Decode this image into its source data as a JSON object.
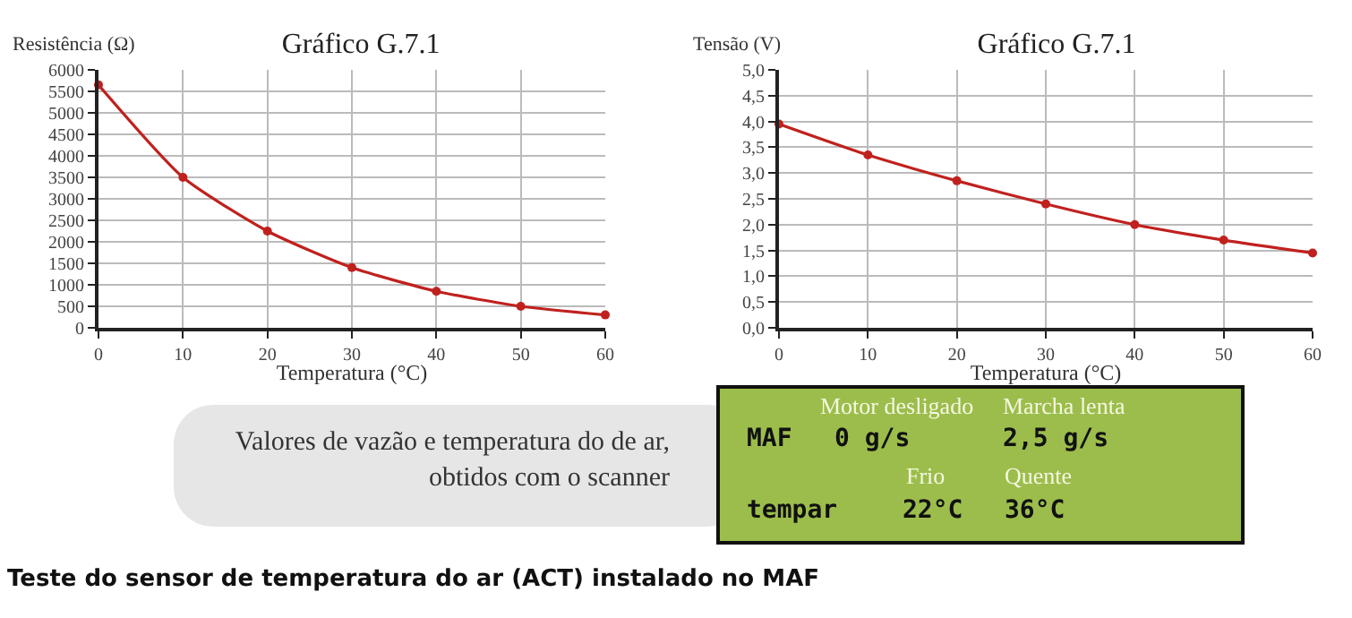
{
  "chart_data": [
    {
      "type": "line",
      "title": "Gráfico G.7.1",
      "xlabel": "Temperatura (°C)",
      "ylabel": "Resistência (Ω)",
      "x": [
        0,
        10,
        20,
        30,
        40,
        50,
        60
      ],
      "series": [
        {
          "color": "#c0211e",
          "values": [
            5650,
            3500,
            2250,
            1400,
            850,
            500,
            300
          ]
        }
      ],
      "xlim": [
        0,
        60
      ],
      "xticks": [
        0,
        10,
        20,
        30,
        40,
        50,
        60
      ],
      "ylim": [
        0,
        6000
      ],
      "yticks": [
        0,
        500,
        1000,
        1500,
        2000,
        2500,
        3000,
        3500,
        4000,
        4500,
        5000,
        5500,
        6000
      ],
      "grid": true,
      "marker": "circle",
      "line_style": "solid"
    },
    {
      "type": "line",
      "title": "Gráfico G.7.1",
      "xlabel": "Temperatura (°C)",
      "ylabel": "Tensão (V)",
      "x": [
        0,
        10,
        20,
        30,
        40,
        50,
        60
      ],
      "series": [
        {
          "color": "#c0211e",
          "values": [
            3.95,
            3.35,
            2.85,
            2.4,
            2.0,
            1.7,
            1.45
          ]
        }
      ],
      "xlim": [
        0,
        60
      ],
      "xticks": [
        0,
        10,
        20,
        30,
        40,
        50,
        60
      ],
      "ylim": [
        0,
        5
      ],
      "yticks": [
        {
          "value": 0,
          "label": "0,0"
        },
        {
          "value": 0.5,
          "label": "0,5"
        },
        {
          "value": 1,
          "label": "1,0"
        },
        {
          "value": 1.5,
          "label": "1,5"
        },
        {
          "value": 2,
          "label": "2,0"
        },
        {
          "value": 2.5,
          "label": "2,5"
        },
        {
          "value": 3,
          "label": "3,0"
        },
        {
          "value": 3.5,
          "label": "3,5"
        },
        {
          "value": 4,
          "label": "4,0"
        },
        {
          "value": 4.5,
          "label": "4,5"
        },
        {
          "value": 5,
          "label": "5,0"
        }
      ],
      "grid": true,
      "marker": "circle",
      "line_style": "solid"
    },
    {
      "type": "other",
      "annotations": [
        "Valores de vazão e temperatura do de ar, obtidos com o scanner",
        "Motor desligado",
        "Marcha lenta",
        "MAF",
        "0 g/s",
        "2,5 g/s",
        "Frio",
        "Quente",
        "tempar",
        "22°C",
        "36°C",
        "Teste do sensor de temperatura do ar (ACT) instalado no MAF"
      ]
    }
  ]
}
